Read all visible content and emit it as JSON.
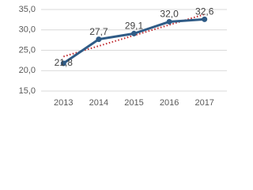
{
  "chart_data": {
    "type": "line",
    "categories": [
      "2013",
      "2014",
      "2015",
      "2016",
      "2017"
    ],
    "series": [
      {
        "color": "#2f5b86",
        "values": [
          21.8,
          27.7,
          29.1,
          32.0,
          32.6
        ],
        "value_labels": [
          "21,8",
          "27,7",
          "29,1",
          "32,0",
          "32,6"
        ]
      }
    ],
    "ylim": [
      15,
      35
    ],
    "yticks": [
      {
        "value": 15,
        "label": "15,0"
      },
      {
        "value": 20,
        "label": "20,0"
      },
      {
        "value": 25,
        "label": "25,0"
      },
      {
        "value": 30,
        "label": "30,0"
      },
      {
        "value": 35,
        "label": "35,0"
      }
    ],
    "grid": true,
    "trendline": "linear",
    "trendline_color": "#c0282d"
  }
}
